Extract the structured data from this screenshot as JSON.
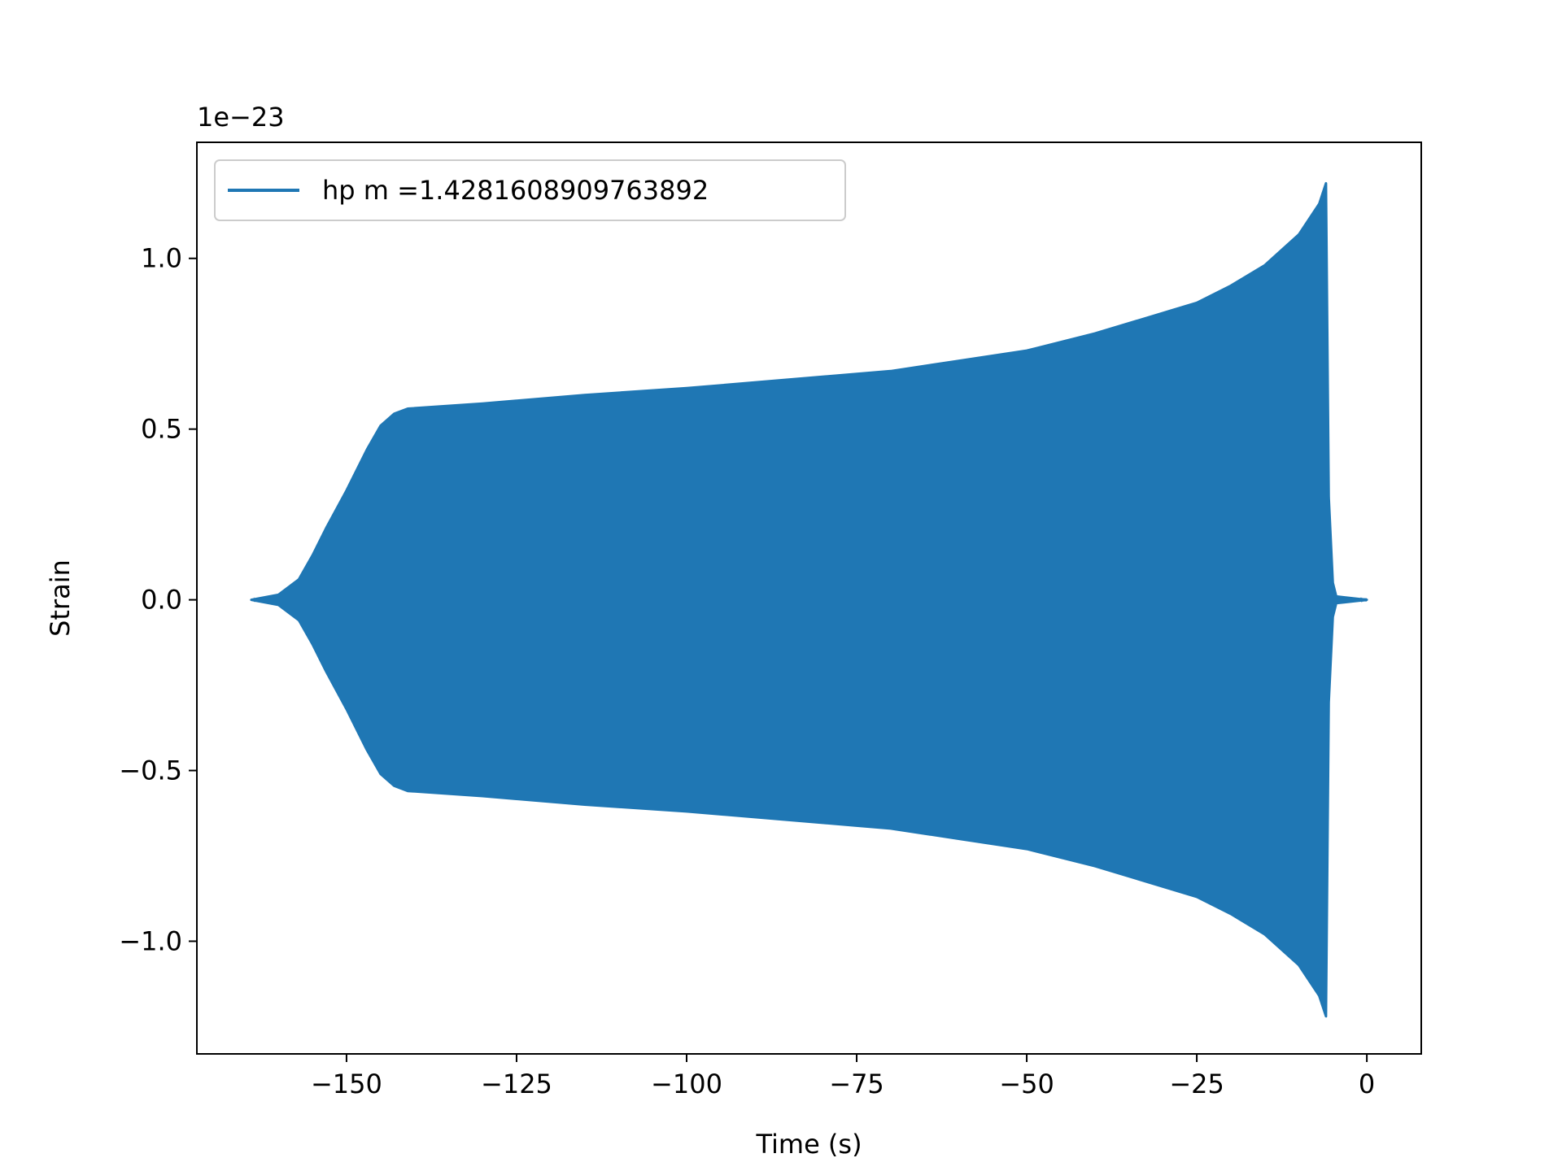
{
  "chart_data": {
    "type": "line",
    "title": "",
    "xlabel": "Time (s)",
    "ylabel": "Strain",
    "offset_label": "1e−23",
    "xlim": [
      -172,
      8
    ],
    "ylim": [
      -1.33,
      1.34
    ],
    "x_ticks": [
      {
        "value": -150,
        "label": "−150"
      },
      {
        "value": -125,
        "label": "−125"
      },
      {
        "value": -100,
        "label": "−100"
      },
      {
        "value": -75,
        "label": "−75"
      },
      {
        "value": -50,
        "label": "−50"
      },
      {
        "value": -25,
        "label": "−25"
      },
      {
        "value": 0,
        "label": "0"
      }
    ],
    "y_ticks": [
      {
        "value": 1.0,
        "label": "1.0"
      },
      {
        "value": 0.5,
        "label": "0.5"
      },
      {
        "value": 0.0,
        "label": "0.0"
      },
      {
        "value": -0.5,
        "label": "−0.5"
      },
      {
        "value": -1.0,
        "label": "−1.0"
      }
    ],
    "grid": false,
    "legend_position": "top-left",
    "series": [
      {
        "name": "hp m =1.4281608909763892",
        "color": "#1f77b4",
        "style": "oscillating-envelope",
        "t_start": -164,
        "t_end": 0,
        "merger_time": -6,
        "upper_envelope": [
          [
            -164,
            0.0
          ],
          [
            -160,
            0.015
          ],
          [
            -157,
            0.06
          ],
          [
            -155,
            0.13
          ],
          [
            -153,
            0.21
          ],
          [
            -150,
            0.32
          ],
          [
            -147,
            0.44
          ],
          [
            -145,
            0.51
          ],
          [
            -143,
            0.545
          ],
          [
            -141,
            0.56
          ],
          [
            -130,
            0.575
          ],
          [
            -115,
            0.6
          ],
          [
            -100,
            0.62
          ],
          [
            -85,
            0.645
          ],
          [
            -70,
            0.67
          ],
          [
            -60,
            0.7
          ],
          [
            -50,
            0.73
          ],
          [
            -40,
            0.78
          ],
          [
            -30,
            0.84
          ],
          [
            -25,
            0.87
          ],
          [
            -20,
            0.92
          ],
          [
            -15,
            0.98
          ],
          [
            -10,
            1.07
          ],
          [
            -7,
            1.16
          ],
          [
            -6,
            1.22
          ],
          [
            -5.6,
            0.3
          ],
          [
            -5,
            0.05
          ],
          [
            -4.5,
            0.01
          ],
          [
            0,
            0.0
          ]
        ],
        "lower_envelope": [
          [
            -164,
            0.0
          ],
          [
            -160,
            -0.015
          ],
          [
            -157,
            -0.06
          ],
          [
            -155,
            -0.13
          ],
          [
            -153,
            -0.21
          ],
          [
            -150,
            -0.32
          ],
          [
            -147,
            -0.44
          ],
          [
            -145,
            -0.51
          ],
          [
            -143,
            -0.545
          ],
          [
            -141,
            -0.56
          ],
          [
            -130,
            -0.575
          ],
          [
            -115,
            -0.6
          ],
          [
            -100,
            -0.62
          ],
          [
            -85,
            -0.645
          ],
          [
            -70,
            -0.67
          ],
          [
            -60,
            -0.7
          ],
          [
            -50,
            -0.73
          ],
          [
            -40,
            -0.78
          ],
          [
            -30,
            -0.84
          ],
          [
            -25,
            -0.87
          ],
          [
            -20,
            -0.92
          ],
          [
            -15,
            -0.98
          ],
          [
            -10,
            -1.07
          ],
          [
            -7,
            -1.16
          ],
          [
            -6,
            -1.22
          ],
          [
            -5.6,
            -0.3
          ],
          [
            -5,
            -0.05
          ],
          [
            -4.5,
            -0.01
          ],
          [
            0,
            0.0
          ]
        ]
      }
    ]
  }
}
